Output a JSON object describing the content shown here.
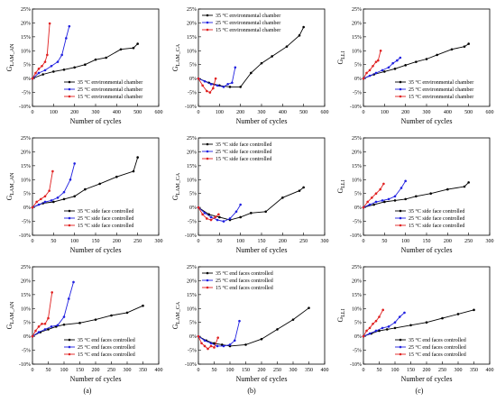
{
  "figure": {
    "captions": [
      "(a)",
      "(b)",
      "(c)"
    ],
    "colors": {
      "35": "#000000",
      "25": "#2020e0",
      "15": "#e02020"
    }
  },
  "chart_data": [
    {
      "type": "line",
      "row": 0,
      "col": 0,
      "xlabel": "Number of cycles",
      "ylabel_main": "G",
      "ylabel_sub": "LAM_AN",
      "xlim": [
        0,
        600
      ],
      "xticks": [
        0,
        100,
        200,
        300,
        400,
        500,
        600
      ],
      "ylim": [
        -10,
        25
      ],
      "yticks": [
        -10,
        -5,
        0,
        5,
        10,
        15,
        20,
        25
      ],
      "tick_suffix": "%",
      "legend_position": "bottom-right",
      "series": [
        {
          "name": "35 °C environmental chamber",
          "color": "#000000",
          "x": [
            0,
            50,
            100,
            150,
            200,
            250,
            300,
            350,
            420,
            480,
            500
          ],
          "y": [
            0,
            1.5,
            2.5,
            3.2,
            4.0,
            5.0,
            6.8,
            7.5,
            10.5,
            11.0,
            12.5
          ]
        },
        {
          "name": "25 °C environmental chamber",
          "color": "#2020e0",
          "x": [
            0,
            30,
            60,
            90,
            120,
            140,
            160,
            175
          ],
          "y": [
            0,
            2.0,
            3.0,
            4.5,
            6.0,
            8.5,
            14.5,
            18.8
          ]
        },
        {
          "name": "15 °C environmental chamber",
          "color": "#e02020",
          "x": [
            0,
            15,
            30,
            45,
            60,
            70,
            82
          ],
          "y": [
            0,
            2.0,
            3.5,
            4.5,
            6.0,
            8.5,
            19.8
          ]
        }
      ]
    },
    {
      "type": "line",
      "row": 0,
      "col": 1,
      "xlabel": "Number of cycles",
      "ylabel_main": "G",
      "ylabel_sub": "LAM_CA",
      "xlim": [
        0,
        600
      ],
      "xticks": [
        0,
        100,
        200,
        300,
        400,
        500,
        600
      ],
      "ylim": [
        -10,
        25
      ],
      "yticks": [
        -10,
        -5,
        0,
        5,
        10,
        15,
        20,
        25
      ],
      "tick_suffix": "%",
      "legend_position": "top-left",
      "series": [
        {
          "name": "35 °C environmental chamber",
          "color": "#000000",
          "x": [
            0,
            50,
            100,
            150,
            200,
            250,
            300,
            350,
            420,
            480,
            500
          ],
          "y": [
            0,
            -1.5,
            -2.5,
            -3.0,
            -3.0,
            2.0,
            5.5,
            8.0,
            11.5,
            15.5,
            18.5
          ]
        },
        {
          "name": "25 °C environmental chamber",
          "color": "#2020e0",
          "x": [
            0,
            30,
            60,
            90,
            120,
            140,
            160,
            175
          ],
          "y": [
            0,
            -1.0,
            -2.0,
            -2.5,
            -3.0,
            -2.0,
            -1.5,
            4.0
          ]
        },
        {
          "name": "15 °C environmental chamber",
          "color": "#e02020",
          "x": [
            0,
            20,
            40,
            55,
            70,
            82
          ],
          "y": [
            0,
            -2.5,
            -4.5,
            -5.0,
            -3.5,
            0
          ]
        }
      ]
    },
    {
      "type": "line",
      "row": 0,
      "col": 2,
      "xlabel": "Number of cycles",
      "ylabel_main": "G",
      "ylabel_sub": "LLI",
      "xlim": [
        0,
        600
      ],
      "xticks": [
        0,
        100,
        200,
        300,
        400,
        500,
        600
      ],
      "ylim": [
        -10,
        25
      ],
      "yticks": [
        -10,
        -5,
        0,
        5,
        10,
        15,
        20,
        25
      ],
      "tick_suffix": "%",
      "legend_position": "bottom-right",
      "series": [
        {
          "name": "35 °C environmental chamber",
          "color": "#000000",
          "x": [
            0,
            50,
            100,
            150,
            200,
            250,
            300,
            350,
            420,
            480,
            500
          ],
          "y": [
            0,
            1.5,
            2.5,
            3.5,
            4.8,
            6.0,
            7.0,
            8.5,
            10.5,
            11.5,
            12.5
          ]
        },
        {
          "name": "25 °C environmental chamber",
          "color": "#2020e0",
          "x": [
            0,
            30,
            60,
            90,
            120,
            140,
            160,
            175
          ],
          "y": [
            0,
            1.0,
            2.0,
            3.0,
            4.0,
            5.5,
            6.5,
            7.5
          ]
        },
        {
          "name": "15 °C environmental chamber",
          "color": "#e02020",
          "x": [
            0,
            15,
            30,
            45,
            60,
            70,
            82
          ],
          "y": [
            0,
            2.0,
            3.0,
            4.5,
            6.0,
            6.5,
            10.0
          ]
        }
      ]
    },
    {
      "type": "line",
      "row": 1,
      "col": 0,
      "xlabel": "Number of cycles",
      "ylabel_main": "G",
      "ylabel_sub": "LAM_AN",
      "xlim": [
        0,
        300
      ],
      "xticks": [
        0,
        50,
        100,
        150,
        200,
        250,
        300
      ],
      "ylim": [
        -10,
        25
      ],
      "yticks": [
        -10,
        -5,
        0,
        5,
        10,
        15,
        20,
        25
      ],
      "tick_suffix": "%",
      "legend_position": "bottom-right",
      "series": [
        {
          "name": "35 °C side face controlled",
          "color": "#000000",
          "x": [
            0,
            25,
            50,
            75,
            100,
            125,
            160,
            200,
            240,
            250
          ],
          "y": [
            0,
            1.5,
            2.0,
            3.0,
            4.0,
            6.5,
            8.5,
            11.0,
            13.0,
            18.0
          ]
        },
        {
          "name": "25 °C side face controlled",
          "color": "#2020e0",
          "x": [
            0,
            15,
            30,
            45,
            60,
            75,
            90,
            100
          ],
          "y": [
            0,
            1.0,
            2.0,
            2.5,
            3.5,
            5.5,
            10.0,
            15.8
          ]
        },
        {
          "name": "15 °C side face controlled",
          "color": "#e02020",
          "x": [
            0,
            10,
            20,
            30,
            40,
            48
          ],
          "y": [
            0,
            2.0,
            3.0,
            4.0,
            6.0,
            13.0
          ]
        }
      ]
    },
    {
      "type": "line",
      "row": 1,
      "col": 1,
      "xlabel": "Number of cycles",
      "ylabel_main": "G",
      "ylabel_sub": "LAM_CA",
      "xlim": [
        0,
        300
      ],
      "xticks": [
        0,
        50,
        100,
        150,
        200,
        250,
        300
      ],
      "ylim": [
        -10,
        25
      ],
      "yticks": [
        -10,
        -5,
        0,
        5,
        10,
        15,
        20,
        25
      ],
      "tick_suffix": "%",
      "legend_position": "top-left",
      "series": [
        {
          "name": "35 °C side face controlled",
          "color": "#000000",
          "x": [
            0,
            25,
            50,
            75,
            100,
            125,
            160,
            200,
            240,
            250
          ],
          "y": [
            0,
            -2.5,
            -3.5,
            -4.5,
            -3.5,
            -2.0,
            -1.5,
            3.5,
            6.0,
            7.2
          ]
        },
        {
          "name": "25 °C side face controlled",
          "color": "#2020e0",
          "x": [
            0,
            15,
            30,
            45,
            60,
            75,
            90,
            100
          ],
          "y": [
            0,
            -2.0,
            -3.5,
            -4.5,
            -5.0,
            -4.0,
            -1.5,
            1.0
          ]
        },
        {
          "name": "15 °C side face controlled",
          "color": "#e02020",
          "x": [
            0,
            10,
            20,
            30,
            40,
            48
          ],
          "y": [
            0,
            -2.5,
            -4.0,
            -4.5,
            -3.5,
            -2.5
          ]
        }
      ]
    },
    {
      "type": "line",
      "row": 1,
      "col": 2,
      "xlabel": "Number of cycles",
      "ylabel_main": "G",
      "ylabel_sub": "LLI",
      "xlim": [
        0,
        300
      ],
      "xticks": [
        0,
        50,
        100,
        150,
        200,
        250,
        300
      ],
      "ylim": [
        -10,
        25
      ],
      "yticks": [
        -10,
        -5,
        0,
        5,
        10,
        15,
        20,
        25
      ],
      "tick_suffix": "%",
      "legend_position": "bottom-right",
      "series": [
        {
          "name": "35 °C side face controlled",
          "color": "#000000",
          "x": [
            0,
            25,
            50,
            75,
            100,
            125,
            160,
            200,
            240,
            250
          ],
          "y": [
            0,
            1.0,
            2.0,
            2.5,
            3.0,
            4.0,
            5.0,
            6.5,
            7.5,
            9.0
          ]
        },
        {
          "name": "25 °C side face controlled",
          "color": "#2020e0",
          "x": [
            0,
            15,
            30,
            45,
            60,
            75,
            90,
            100
          ],
          "y": [
            0,
            1.0,
            2.0,
            2.5,
            3.0,
            4.0,
            7.0,
            9.5
          ]
        },
        {
          "name": "15 °C side face controlled",
          "color": "#e02020",
          "x": [
            0,
            10,
            20,
            30,
            40,
            48
          ],
          "y": [
            0,
            2.0,
            3.5,
            5.0,
            6.5,
            8.5
          ]
        }
      ]
    },
    {
      "type": "line",
      "row": 2,
      "col": 0,
      "xlabel": "Number of cycles",
      "ylabel_main": "G",
      "ylabel_sub": "LAM_AN",
      "xlim": [
        0,
        400
      ],
      "xticks": [
        0,
        50,
        100,
        150,
        200,
        250,
        300,
        350,
        400
      ],
      "ylim": [
        -10,
        25
      ],
      "yticks": [
        -10,
        -5,
        0,
        5,
        10,
        15,
        20,
        25
      ],
      "tick_suffix": "%",
      "legend_position": "bottom-right",
      "series": [
        {
          "name": "35 °C end faces controlled",
          "color": "#000000",
          "x": [
            0,
            25,
            50,
            75,
            100,
            150,
            200,
            250,
            300,
            350
          ],
          "y": [
            0,
            1.5,
            2.5,
            3.5,
            4.2,
            4.8,
            6.0,
            7.5,
            8.5,
            11.0
          ]
        },
        {
          "name": "25 °C end faces controlled",
          "color": "#2020e0",
          "x": [
            0,
            20,
            40,
            60,
            80,
            100,
            115,
            130
          ],
          "y": [
            0,
            1.5,
            2.5,
            3.5,
            4.0,
            7.0,
            13.5,
            19.5
          ]
        },
        {
          "name": "15 °C end faces controlled",
          "color": "#e02020",
          "x": [
            0,
            10,
            20,
            30,
            40,
            50,
            62
          ],
          "y": [
            0,
            2.0,
            3.5,
            4.5,
            4.5,
            6.5,
            15.8
          ]
        }
      ]
    },
    {
      "type": "line",
      "row": 2,
      "col": 1,
      "xlabel": "Number of cycles",
      "ylabel_main": "G",
      "ylabel_sub": "LAM_CA",
      "xlim": [
        0,
        400
      ],
      "xticks": [
        0,
        50,
        100,
        150,
        200,
        250,
        300,
        350,
        400
      ],
      "ylim": [
        -10,
        25
      ],
      "yticks": [
        -10,
        -5,
        0,
        5,
        10,
        15,
        20,
        25
      ],
      "tick_suffix": "%",
      "legend_position": "top-left",
      "series": [
        {
          "name": "35 °C end faces controlled",
          "color": "#000000",
          "x": [
            0,
            25,
            50,
            75,
            100,
            150,
            200,
            250,
            300,
            350
          ],
          "y": [
            0,
            -1.5,
            -2.5,
            -3.0,
            -3.5,
            -3.0,
            -1.0,
            2.5,
            6.0,
            10.2
          ]
        },
        {
          "name": "25 °C end faces controlled",
          "color": "#2020e0",
          "x": [
            0,
            20,
            40,
            60,
            80,
            100,
            115,
            130
          ],
          "y": [
            0,
            -1.5,
            -2.5,
            -3.5,
            -3.5,
            -3.0,
            -1.5,
            5.5
          ]
        },
        {
          "name": "15 °C end faces controlled",
          "color": "#e02020",
          "x": [
            0,
            10,
            20,
            30,
            40,
            50,
            62
          ],
          "y": [
            0,
            -2.5,
            -3.5,
            -4.5,
            -3.5,
            -4.0,
            -0.5
          ]
        }
      ]
    },
    {
      "type": "line",
      "row": 2,
      "col": 2,
      "xlabel": "Number of cycles",
      "ylabel_main": "G",
      "ylabel_sub": "LLI",
      "xlim": [
        0,
        400
      ],
      "xticks": [
        0,
        50,
        100,
        150,
        200,
        250,
        300,
        350,
        400
      ],
      "ylim": [
        -10,
        25
      ],
      "yticks": [
        -10,
        -5,
        0,
        5,
        10,
        15,
        20,
        25
      ],
      "tick_suffix": "%",
      "legend_position": "bottom-right",
      "series": [
        {
          "name": "35 °C end faces controlled",
          "color": "#000000",
          "x": [
            0,
            25,
            50,
            75,
            100,
            150,
            200,
            250,
            300,
            350
          ],
          "y": [
            0,
            1.0,
            2.0,
            2.5,
            3.0,
            4.0,
            5.0,
            6.5,
            8.0,
            9.5
          ]
        },
        {
          "name": "25 °C end faces controlled",
          "color": "#2020e0",
          "x": [
            0,
            20,
            40,
            60,
            80,
            100,
            115,
            130
          ],
          "y": [
            0,
            1.0,
            2.0,
            3.0,
            3.5,
            5.0,
            7.0,
            8.5
          ]
        },
        {
          "name": "15 °C end faces controlled",
          "color": "#e02020",
          "x": [
            0,
            10,
            20,
            30,
            40,
            50,
            62
          ],
          "y": [
            0,
            2.0,
            3.0,
            4.5,
            5.5,
            7.0,
            9.5
          ]
        }
      ]
    }
  ]
}
